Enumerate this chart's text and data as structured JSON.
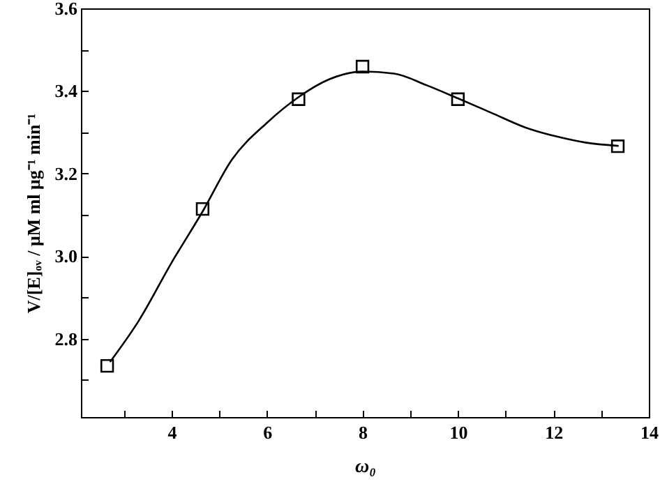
{
  "chart_data": {
    "type": "scatter",
    "xlabel": "ω₀",
    "ylabel": "V/[E]ₒᵥ / μM ml μg⁻¹ min⁻¹",
    "xlim": [
      2.1,
      14
    ],
    "ylim": [
      2.61,
      3.6
    ],
    "xticks": [
      {
        "value": 3,
        "label": null
      },
      4,
      {
        "value": 5,
        "label": null
      },
      6,
      {
        "value": 7,
        "label": null
      },
      8,
      {
        "value": 9,
        "label": null
      },
      10,
      {
        "value": 11,
        "label": null
      },
      12,
      {
        "value": 13,
        "label": null
      },
      14
    ],
    "yticks": [
      {
        "value": 2.7,
        "label": null
      },
      2.8,
      {
        "value": 2.9,
        "label": null
      },
      {
        "value": 3,
        "label": "3.0"
      },
      {
        "value": 3.1,
        "label": null
      },
      3.2,
      {
        "value": 3.3,
        "label": null
      },
      3.4,
      {
        "value": 3.5,
        "label": null
      },
      3.6
    ],
    "grid": false,
    "series": [
      {
        "type": "line",
        "marker": "none",
        "line_style": "solid",
        "color": "#000000",
        "x": [
          2.72,
          3.31,
          4,
          4.65,
          5.26,
          6,
          6.66,
          7.3,
          8,
          8.66,
          9.34,
          10,
          10.72,
          11.4,
          12.09,
          12.67,
          13.35
        ],
        "values": [
          2.745,
          2.843,
          2.984,
          3.108,
          3.233,
          3.323,
          3.385,
          3.428,
          3.447,
          3.442,
          3.414,
          3.382,
          3.346,
          3.312,
          3.289,
          3.275,
          3.267
        ]
      },
      {
        "type": "scatter",
        "marker": "square",
        "color": "#000000",
        "x": [
          2.65,
          4.65,
          6.66,
          8,
          10,
          13.35
        ],
        "values": [
          2.734,
          3.114,
          3.38,
          3.459,
          3.38,
          3.266
        ]
      }
    ]
  }
}
